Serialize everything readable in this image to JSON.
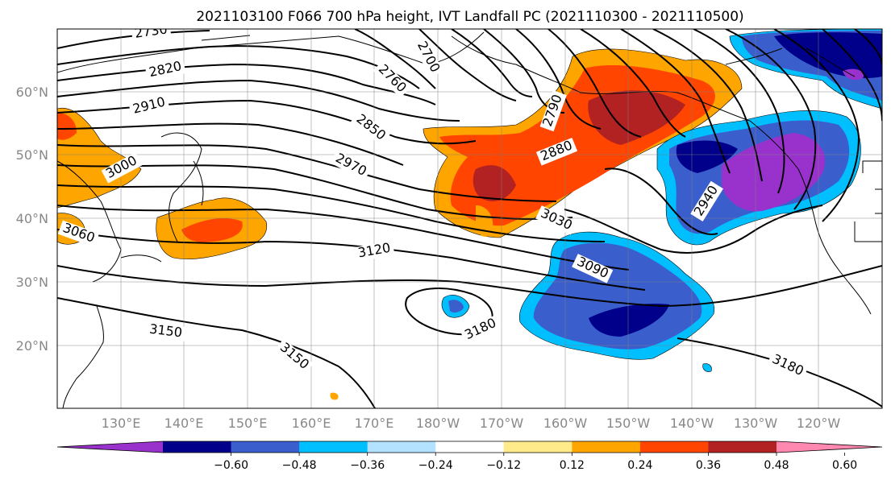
{
  "title": "2021103100 F066 700 hPa height, IVT Landfall PC (2021110300 - 2021110500)",
  "lat_labels": [
    "60°N",
    "50°N",
    "40°N",
    "30°N",
    "20°N"
  ],
  "lon_labels": [
    "130°E",
    "140°E",
    "150°E",
    "160°E",
    "170°E",
    "180°W",
    "170°W",
    "160°W",
    "150°W",
    "140°W",
    "130°W",
    "120°W"
  ],
  "contour_labels": [
    "2730",
    "2820",
    "2910",
    "3000",
    "3060",
    "2700",
    "2760",
    "2850",
    "2970",
    "2790",
    "2880",
    "2940",
    "3030",
    "3090",
    "3120",
    "3150",
    "3150",
    "3180",
    "3180"
  ],
  "colorbar": {
    "ticks": [
      "−0.60",
      "−0.48",
      "−0.36",
      "−0.24",
      "−0.12",
      "0.12",
      "0.24",
      "0.36",
      "0.48",
      "0.60"
    ],
    "colors": [
      "#9932cc",
      "#00008b",
      "#3a5fcd",
      "#00bfff",
      "#b2e2ff",
      "#ffffff",
      "#ffeb8a",
      "#ffa500",
      "#ff4500",
      "#b22222",
      "#ff88b0"
    ]
  }
}
